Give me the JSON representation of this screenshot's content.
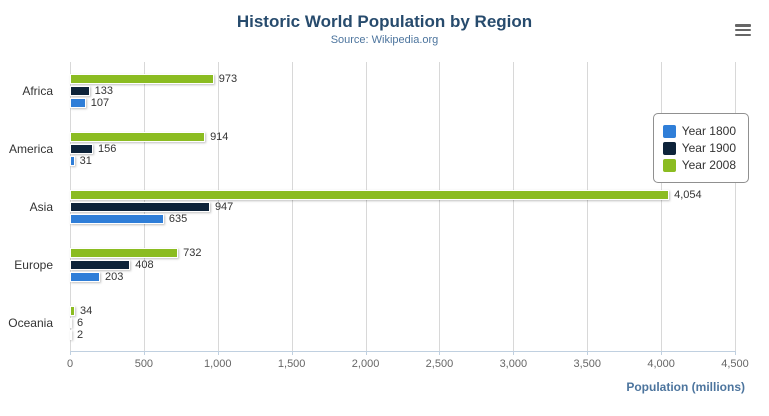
{
  "header": {
    "title": "Historic World Population by Region",
    "subtitle": "Source: Wikipedia.org"
  },
  "toolbar": {
    "menu_icon": "hamburger-icon"
  },
  "chart_data": {
    "type": "bar",
    "orientation": "horizontal",
    "title": "Historic World Population by Region",
    "subtitle": "Source: Wikipedia.org",
    "categories": [
      "Africa",
      "America",
      "Asia",
      "Europe",
      "Oceania"
    ],
    "series": [
      {
        "name": "Year 1800",
        "color": "#2f7ed8",
        "values": [
          107,
          31,
          635,
          203,
          2
        ]
      },
      {
        "name": "Year 1900",
        "color": "#0d233a",
        "values": [
          133,
          156,
          947,
          408,
          6
        ]
      },
      {
        "name": "Year 2008",
        "color": "#8bbc21",
        "values": [
          973,
          914,
          4054,
          732,
          34
        ]
      }
    ],
    "bar_order_top_to_bottom": [
      "Year 2008",
      "Year 1900",
      "Year 1800"
    ],
    "xlabel": "Population (millions)",
    "ylabel": "",
    "xlim": [
      0,
      4500
    ],
    "x_tick_values": [
      0,
      500,
      1000,
      1500,
      2000,
      2500,
      3000,
      3500,
      4000,
      4500
    ],
    "x_ticks": [
      "0",
      "500",
      "1,000",
      "1,500",
      "2,000",
      "2,500",
      "3,000",
      "3,500",
      "4,000",
      "4,500"
    ],
    "grid": true,
    "legend_position": "right",
    "colors": {
      "title": "#274b6d",
      "subtitle": "#4d759e",
      "axis_title": "#4d759e",
      "gridline": "#d8d8d8",
      "axis_line": "#c0d0e0"
    }
  }
}
